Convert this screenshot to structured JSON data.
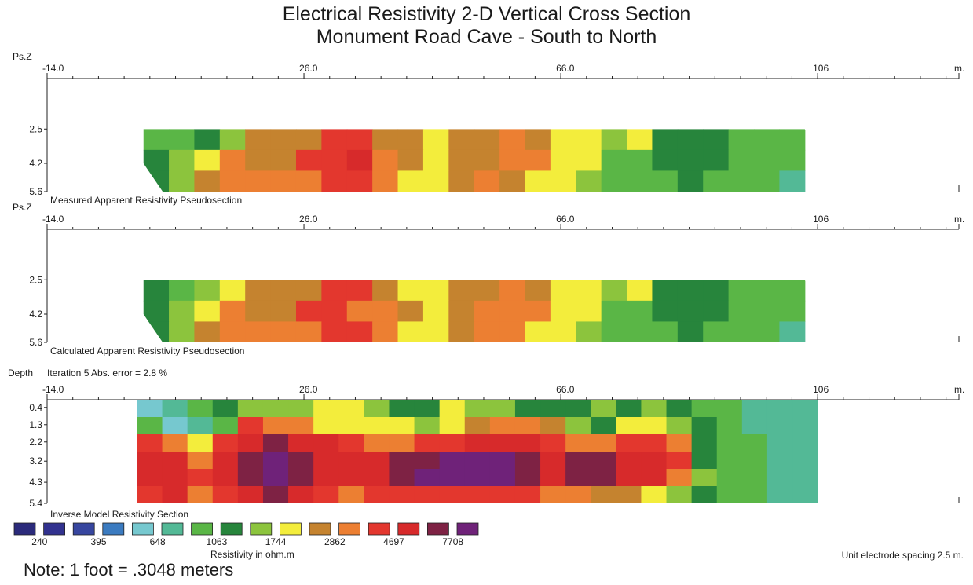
{
  "title": {
    "line1": "Electrical Resistivity 2-D Vertical Cross Section",
    "line2": "Monument Road Cave - South to North"
  },
  "x_axis": {
    "unit": "m.",
    "ticks": [
      -14.0,
      26.0,
      66.0,
      106
    ],
    "tick_labels": [
      "-14.0",
      "26.0",
      "66.0",
      "106"
    ],
    "range": [
      -14,
      128
    ]
  },
  "colors": {
    "scale": [
      "#2b2a7b",
      "#32328f",
      "#37469f",
      "#3b7bc0",
      "#76c8cf",
      "#53b996",
      "#5ab646",
      "#27853c",
      "#8cc43d",
      "#f3ed3c",
      "#c5832f",
      "#ec7f32",
      "#e3372e",
      "#d72a2b",
      "#7e2244",
      "#6f2279"
    ]
  },
  "chart_data": [
    {
      "type": "heatmap",
      "name": "Measured Apparent Resistivity Pseudosection",
      "ylabel": "Ps.Z",
      "y_ticks": [
        "2.5",
        "4.2",
        "5.6"
      ],
      "x_range": [
        -14,
        128
      ],
      "depth_range": [
        0,
        5.6
      ],
      "data_extent": {
        "x": [
          1,
          104
        ],
        "depth": [
          2.5,
          5.6
        ]
      },
      "columns": [
        2,
        6,
        10,
        14,
        18,
        22,
        26,
        30,
        34,
        38,
        42,
        46,
        50,
        54,
        58,
        62,
        66,
        70,
        74,
        78,
        82,
        86,
        90,
        94,
        98,
        102
      ],
      "rows": [
        [
          6,
          6,
          7,
          8,
          10,
          10,
          10,
          12,
          12,
          10,
          10,
          9,
          10,
          10,
          11,
          10,
          9,
          9,
          8,
          9,
          7,
          7,
          7,
          6,
          6,
          6
        ],
        [
          7,
          8,
          9,
          11,
          10,
          10,
          12,
          12,
          13,
          11,
          10,
          9,
          10,
          10,
          11,
          11,
          9,
          9,
          6,
          6,
          7,
          7,
          7,
          6,
          6,
          6
        ],
        [
          7,
          8,
          10,
          11,
          11,
          11,
          11,
          12,
          12,
          11,
          9,
          9,
          10,
          11,
          10,
          9,
          9,
          8,
          6,
          6,
          6,
          7,
          6,
          6,
          6,
          5
        ]
      ]
    },
    {
      "type": "heatmap",
      "name": "Calculated Apparent Resistivity Pseudosection",
      "ylabel": "Ps.Z",
      "y_ticks": [
        "2.5",
        "4.2",
        "5.6"
      ],
      "x_range": [
        -14,
        128
      ],
      "depth_range": [
        0,
        5.6
      ],
      "data_extent": {
        "x": [
          1,
          104
        ],
        "depth": [
          2.5,
          5.6
        ]
      },
      "columns": [
        2,
        6,
        10,
        14,
        18,
        22,
        26,
        30,
        34,
        38,
        42,
        46,
        50,
        54,
        58,
        62,
        66,
        70,
        74,
        78,
        82,
        86,
        90,
        94,
        98,
        102
      ],
      "rows": [
        [
          7,
          6,
          8,
          9,
          10,
          10,
          10,
          12,
          12,
          10,
          9,
          9,
          10,
          10,
          11,
          10,
          9,
          9,
          8,
          9,
          7,
          7,
          7,
          6,
          6,
          6
        ],
        [
          7,
          8,
          9,
          11,
          10,
          10,
          12,
          12,
          11,
          11,
          10,
          9,
          10,
          11,
          11,
          11,
          9,
          9,
          6,
          6,
          7,
          7,
          7,
          6,
          6,
          6
        ],
        [
          7,
          8,
          10,
          11,
          11,
          11,
          11,
          12,
          12,
          11,
          9,
          9,
          10,
          11,
          11,
          9,
          9,
          8,
          6,
          6,
          6,
          7,
          6,
          6,
          6,
          5
        ]
      ]
    },
    {
      "type": "heatmap",
      "name": "Inverse Model Resistivity Section",
      "ylabel": "Depth",
      "annotation": "Iteration 5 Abs. error = 2.8 %",
      "y_ticks": [
        "0.4",
        "1.3",
        "2.2",
        "3.2",
        "4.3",
        "5.4"
      ],
      "x_range": [
        -14,
        128
      ],
      "depth_range": [
        0,
        5.4
      ],
      "data_extent": {
        "x": [
          0,
          106
        ],
        "depth": [
          0,
          5.4
        ]
      },
      "columns": [
        1,
        5,
        9,
        13,
        17,
        21,
        25,
        29,
        33,
        37,
        41,
        45,
        49,
        53,
        57,
        61,
        65,
        69,
        73,
        77,
        81,
        85,
        89,
        93,
        97,
        101,
        105
      ],
      "rows": [
        [
          4,
          5,
          6,
          7,
          8,
          8,
          8,
          9,
          9,
          8,
          7,
          7,
          9,
          8,
          8,
          7,
          7,
          7,
          8,
          7,
          8,
          7,
          6,
          6,
          5,
          5,
          5
        ],
        [
          6,
          4,
          5,
          6,
          12,
          11,
          11,
          9,
          9,
          9,
          9,
          8,
          9,
          10,
          11,
          11,
          10,
          8,
          7,
          9,
          9,
          8,
          7,
          6,
          5,
          5,
          5
        ],
        [
          12,
          11,
          9,
          12,
          13,
          14,
          13,
          13,
          12,
          11,
          11,
          12,
          12,
          13,
          13,
          13,
          12,
          11,
          11,
          12,
          12,
          11,
          7,
          6,
          6,
          5,
          5
        ],
        [
          13,
          13,
          11,
          13,
          14,
          15,
          14,
          13,
          13,
          13,
          14,
          14,
          15,
          15,
          15,
          14,
          13,
          14,
          14,
          13,
          13,
          12,
          7,
          6,
          6,
          5,
          5
        ],
        [
          13,
          13,
          12,
          13,
          14,
          15,
          14,
          13,
          13,
          13,
          14,
          15,
          15,
          15,
          15,
          14,
          13,
          14,
          14,
          13,
          13,
          11,
          8,
          6,
          6,
          5,
          5
        ],
        [
          12,
          13,
          11,
          12,
          13,
          14,
          13,
          12,
          11,
          12,
          12,
          12,
          12,
          12,
          12,
          12,
          11,
          11,
          10,
          10,
          9,
          8,
          7,
          6,
          6,
          5,
          5
        ]
      ]
    }
  ],
  "legend": {
    "labels": [
      "240",
      "395",
      "648",
      "1063",
      "1744",
      "2862",
      "4697",
      "7708"
    ],
    "caption": "Resistivity in ohm.m"
  },
  "footer": {
    "spacing": "Unit electrode spacing 2.5 m.",
    "note": "Note: 1 foot = .3048 meters"
  }
}
